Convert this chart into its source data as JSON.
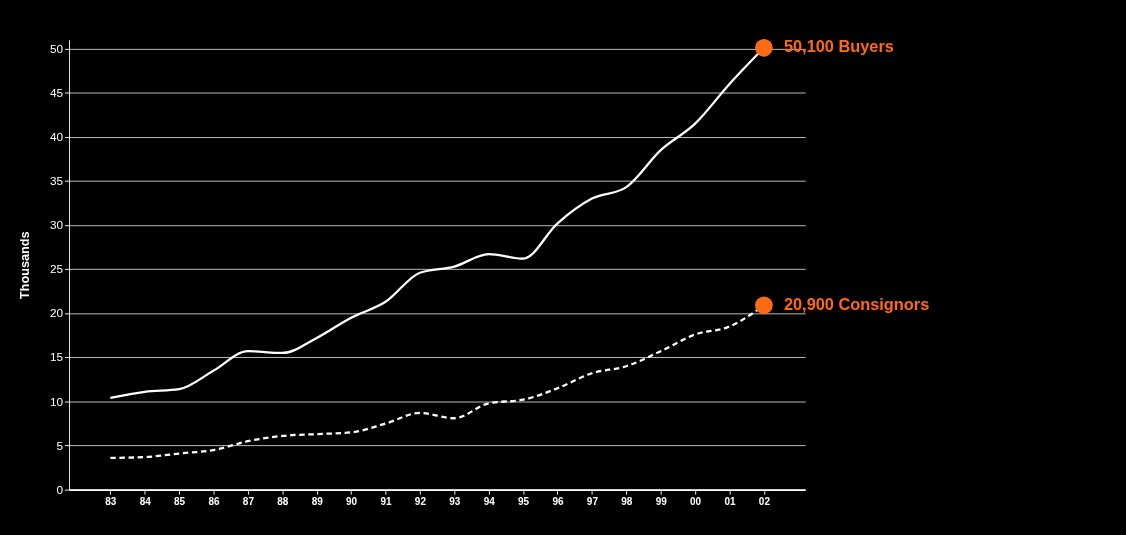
{
  "chart_data": {
    "type": "line",
    "ylabel": "Thousands",
    "categories": [
      "83",
      "84",
      "85",
      "86",
      "87",
      "88",
      "89",
      "90",
      "91",
      "92",
      "93",
      "94",
      "95",
      "96",
      "97",
      "98",
      "99",
      "00",
      "01",
      "02"
    ],
    "series": [
      {
        "color": "#ffffff",
        "line_style": "solid",
        "values": [
          10.4,
          11.1,
          11.4,
          13.5,
          15.7,
          15.5,
          17.2,
          19.5,
          21.3,
          24.6,
          25.3,
          26.7,
          26.2,
          30.2,
          33.0,
          34.3,
          38.5,
          41.5,
          46.0,
          50.1
        ]
      },
      {
        "color": "#ffffff",
        "line_style": "dashed",
        "values": [
          3.6,
          3.7,
          4.1,
          4.5,
          5.5,
          6.1,
          6.3,
          6.5,
          7.5,
          8.7,
          8.1,
          9.8,
          10.2,
          11.5,
          13.2,
          14.0,
          15.7,
          17.6,
          18.5,
          20.9
        ]
      }
    ],
    "annotations": [
      {
        "text": "50,100 Buyers",
        "x": "02",
        "y": 50.1
      },
      {
        "text": "20,900 Consignors",
        "x": "02",
        "y": 20.9
      }
    ],
    "ylim": [
      0,
      51
    ],
    "yticks": [
      0,
      5,
      10,
      15,
      20,
      25,
      30,
      35,
      40,
      45,
      50
    ],
    "grid": "y"
  }
}
